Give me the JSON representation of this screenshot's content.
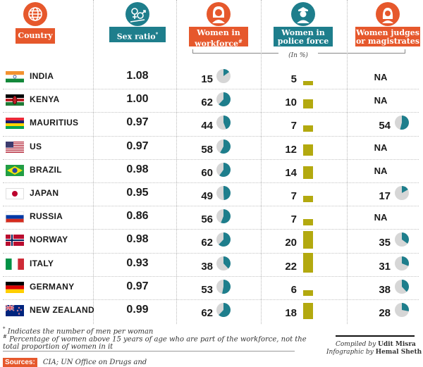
{
  "chart_data": {
    "type": "table",
    "unit_note": "(In %)",
    "columns": [
      {
        "key": "country",
        "label": "Country",
        "color": "#e6582c"
      },
      {
        "key": "sex_ratio",
        "label": "Sex ratio",
        "marker": "*",
        "color": "#1e7e8c"
      },
      {
        "key": "workforce",
        "label_lines": [
          "Women in",
          "workforce"
        ],
        "marker": "#",
        "color": "#e6582c"
      },
      {
        "key": "police",
        "label_lines": [
          "Women in",
          "police force"
        ],
        "color": "#1e7e8c"
      },
      {
        "key": "judges",
        "label_lines": [
          "Women judges",
          "or magistrates"
        ],
        "color": "#e6582c"
      }
    ],
    "rows": [
      {
        "country": "INDIA",
        "flag": "india",
        "sex_ratio": "1.08",
        "workforce": 15,
        "police": 5,
        "judges": "NA"
      },
      {
        "country": "KENYA",
        "flag": "kenya",
        "sex_ratio": "1.00",
        "workforce": 62,
        "police": 10,
        "judges": "NA"
      },
      {
        "country": "MAURITIUS",
        "flag": "mauritius",
        "sex_ratio": "0.97",
        "workforce": 44,
        "police": 7,
        "judges": 54
      },
      {
        "country": "US",
        "flag": "us",
        "sex_ratio": "0.97",
        "workforce": 58,
        "police": 12,
        "judges": "NA"
      },
      {
        "country": "BRAZIL",
        "flag": "brazil",
        "sex_ratio": "0.98",
        "workforce": 60,
        "police": 14,
        "judges": "NA"
      },
      {
        "country": "JAPAN",
        "flag": "japan",
        "sex_ratio": "0.95",
        "workforce": 49,
        "police": 7,
        "judges": 17
      },
      {
        "country": "RUSSIA",
        "flag": "russia",
        "sex_ratio": "0.86",
        "workforce": 56,
        "police": 7,
        "judges": "NA"
      },
      {
        "country": "NORWAY",
        "flag": "norway",
        "sex_ratio": "0.98",
        "workforce": 62,
        "police": 20,
        "judges": 35
      },
      {
        "country": "ITALY",
        "flag": "italy",
        "sex_ratio": "0.93",
        "workforce": 38,
        "police": 22,
        "judges": 31
      },
      {
        "country": "GERMANY",
        "flag": "germany",
        "sex_ratio": "0.97",
        "workforce": 53,
        "police": 6,
        "judges": 38
      },
      {
        "country": "NEW ZEALAND",
        "flag": "newzealand",
        "sex_ratio": "0.99",
        "workforce": 62,
        "police": 18,
        "judges": 28
      }
    ],
    "colors": {
      "pie_fill": "#1e7e8c",
      "pie_bg": "#d6d6d6",
      "bar": "#b3a90f",
      "orange": "#e6582c",
      "teal": "#1e7e8c"
    }
  },
  "footnotes": {
    "star": "Indicates the number of men per woman",
    "hash": "Percentage of women above 15 years of age who are part of the workforce, not the total proportion of women in it"
  },
  "sources": {
    "label": "Sources:",
    "text": "CIA; UN Office on Drugs and"
  },
  "credits": {
    "compiled_prefix": "Compiled by ",
    "compiled_name": "Udit Misra",
    "infographic_prefix": "Infographic by ",
    "infographic_name": "Hemal Sheth"
  }
}
